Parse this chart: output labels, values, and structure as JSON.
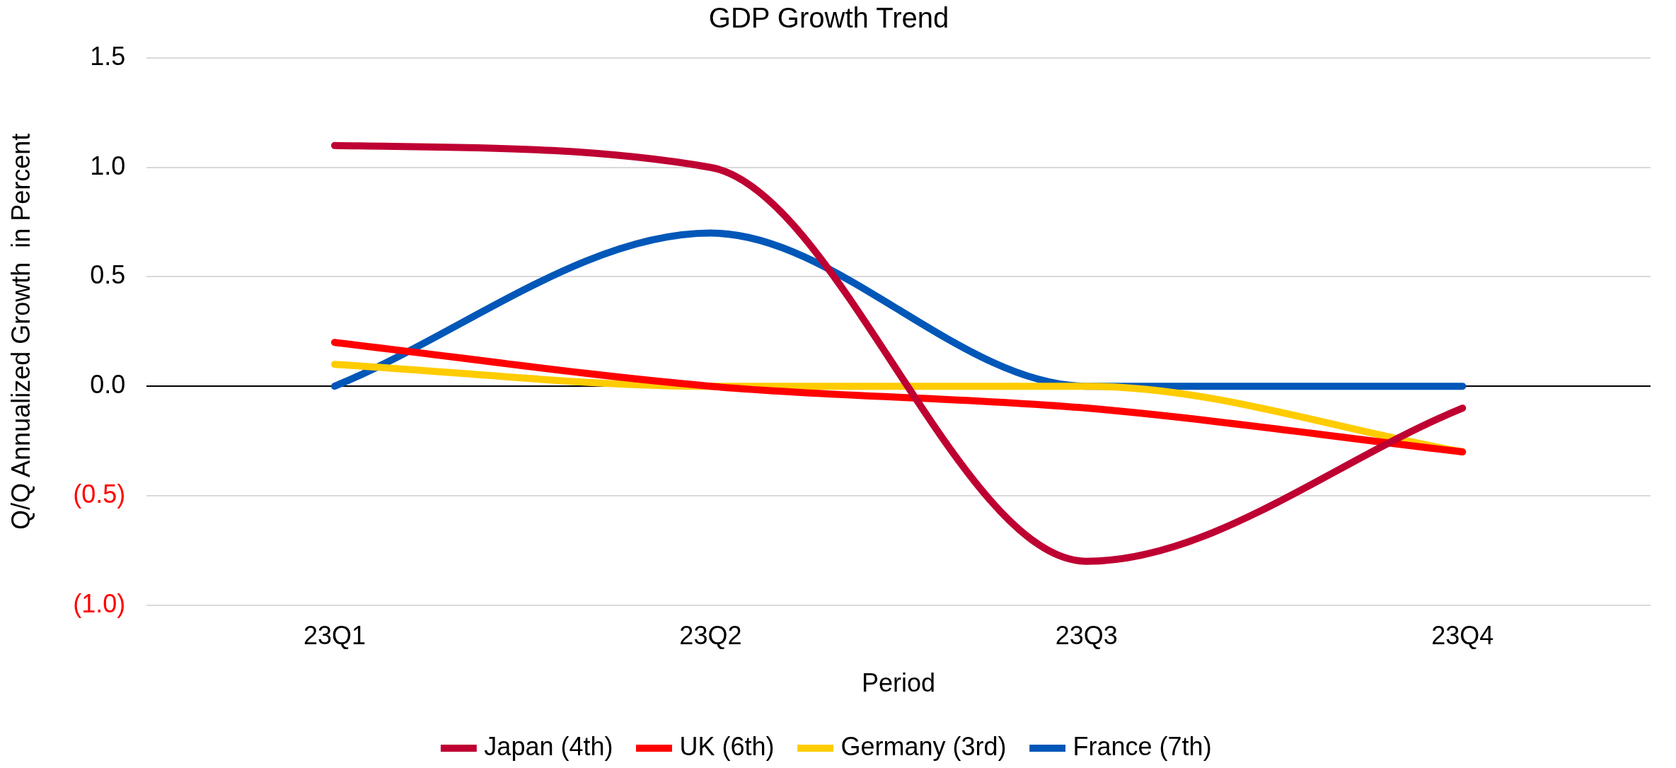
{
  "chart_data": {
    "type": "line",
    "title": "GDP Growth Trend",
    "xlabel": "Period",
    "ylabel": "Q/Q Annualized Growth  in Percent",
    "categories": [
      "23Q1",
      "23Q2",
      "23Q3",
      "23Q4"
    ],
    "series": [
      {
        "name": "Japan (4th)",
        "color": "#be0032",
        "values": [
          1.1,
          1.0,
          -0.8,
          -0.1
        ]
      },
      {
        "name": "UK (6th)",
        "color": "#ff0000",
        "values": [
          0.2,
          0.0,
          -0.1,
          -0.3
        ]
      },
      {
        "name": "Germany (3rd)",
        "color": "#ffcc00",
        "values": [
          0.1,
          0.0,
          0.0,
          -0.3
        ]
      },
      {
        "name": "France (7th)",
        "color": "#0057b8",
        "values": [
          0.0,
          0.7,
          0.0,
          0.0
        ]
      }
    ],
    "ylim": [
      -1.0,
      1.5
    ],
    "yticks": [
      {
        "value": -1.0,
        "label": "(1.0)"
      },
      {
        "value": -0.5,
        "label": "(0.5)"
      },
      {
        "value": 0,
        "label": "0.0"
      },
      {
        "value": 0.5,
        "label": "0.5"
      },
      {
        "value": 1.0,
        "label": "1.0"
      },
      {
        "value": 1.5,
        "label": "1.5"
      }
    ],
    "grid": "y",
    "legend": "bottom",
    "marker": "none",
    "line_style": "solid"
  }
}
